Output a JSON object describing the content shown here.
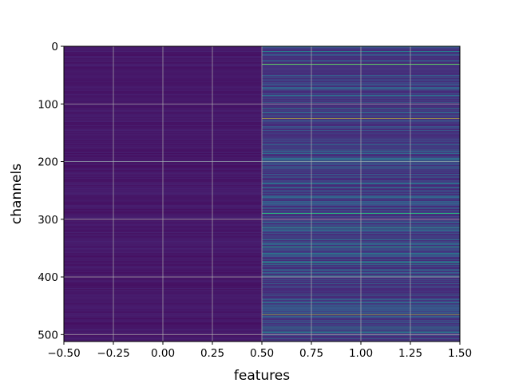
{
  "chart_data": {
    "type": "heatmap",
    "title": "",
    "xlabel": "features",
    "ylabel": "channels",
    "xlim": [
      -0.5,
      1.5
    ],
    "ylim": [
      512,
      0
    ],
    "x_ticks": [
      -0.5,
      -0.25,
      0.0,
      0.25,
      0.5,
      0.75,
      1.0,
      1.25,
      1.5
    ],
    "x_tick_labels": [
      "−0.50",
      "−0.25",
      "0.00",
      "0.25",
      "0.50",
      "0.75",
      "1.00",
      "1.25",
      "1.50"
    ],
    "y_ticks": [
      0,
      100,
      200,
      300,
      400,
      500
    ],
    "y_tick_labels": [
      "0",
      "100",
      "200",
      "300",
      "400",
      "500"
    ],
    "grid": true,
    "colormap": "viridis",
    "n_channels": 512,
    "n_features": 2,
    "columns": [
      {
        "feature_index": 0,
        "baseline": 0.04,
        "bright_rows": [
          {
            "channel": 200,
            "value": 0.22
          }
        ]
      },
      {
        "feature_index": 1,
        "baseline": 0.12,
        "bright_rows": [
          {
            "channel": 31,
            "value": 0.75
          },
          {
            "channel": 98,
            "value": 0.38
          },
          {
            "channel": 108,
            "value": 0.4
          },
          {
            "channel": 125,
            "value": 0.95
          },
          {
            "channel": 210,
            "value": 0.35
          },
          {
            "channel": 238,
            "value": 0.4
          },
          {
            "channel": 272,
            "value": 0.35
          },
          {
            "channel": 290,
            "value": 0.62
          },
          {
            "channel": 305,
            "value": 0.35
          },
          {
            "channel": 313,
            "value": 0.6
          },
          {
            "channel": 335,
            "value": 0.4
          },
          {
            "channel": 348,
            "value": 0.55
          },
          {
            "channel": 362,
            "value": 0.38
          },
          {
            "channel": 375,
            "value": 0.55
          },
          {
            "channel": 388,
            "value": 0.4
          },
          {
            "channel": 398,
            "value": 0.45
          },
          {
            "channel": 430,
            "value": 0.4
          },
          {
            "channel": 452,
            "value": 0.45
          },
          {
            "channel": 466,
            "value": 0.9
          },
          {
            "channel": 480,
            "value": 0.4
          },
          {
            "channel": 495,
            "value": 0.45
          }
        ]
      }
    ]
  }
}
